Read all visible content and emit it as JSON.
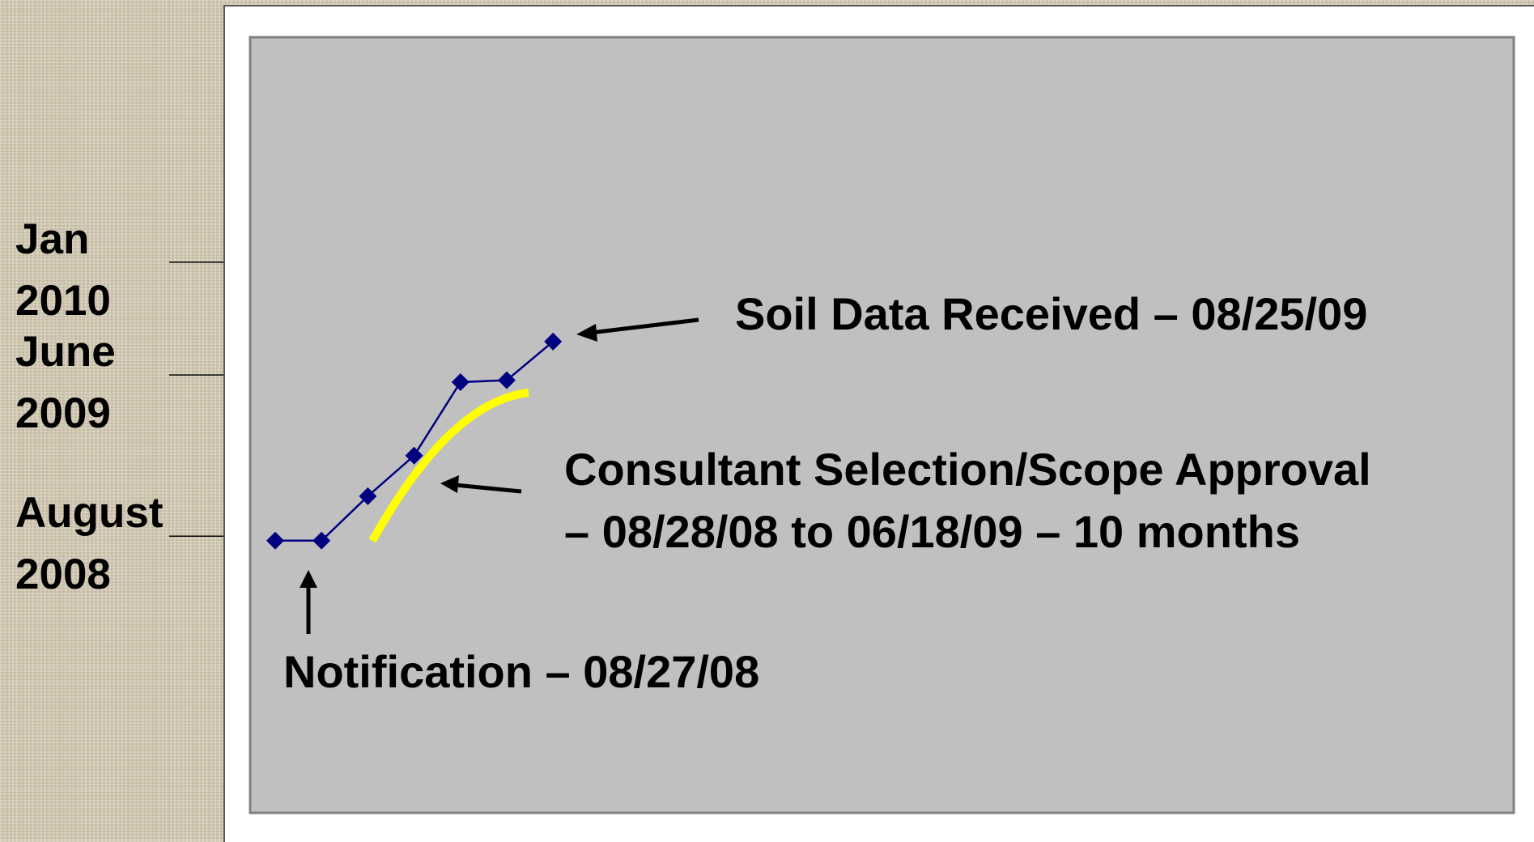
{
  "chart_data": {
    "type": "line",
    "categories": [
      null,
      null,
      null,
      null,
      null,
      null,
      null
    ],
    "values": [
      2008.56,
      2008.56,
      2008.79,
      2009.0,
      2009.38,
      2009.39,
      2009.59
    ],
    "color": "#000080",
    "ylim": [
      2007.156,
      2011.164
    ],
    "yticks": [
      {
        "value": 2008.583,
        "label": "August\n2008"
      },
      {
        "value": 2009.417,
        "label": "June\n2009"
      },
      {
        "value": 2010.0,
        "label": "Jan\n2010"
      }
    ],
    "annotations": [
      "Soil Data Received – 08/25/09",
      "Consultant Selection/Scope Approval",
      "– 08/28/08 to 06/18/09 – 10 months",
      "Notification – 08/27/08"
    ]
  }
}
